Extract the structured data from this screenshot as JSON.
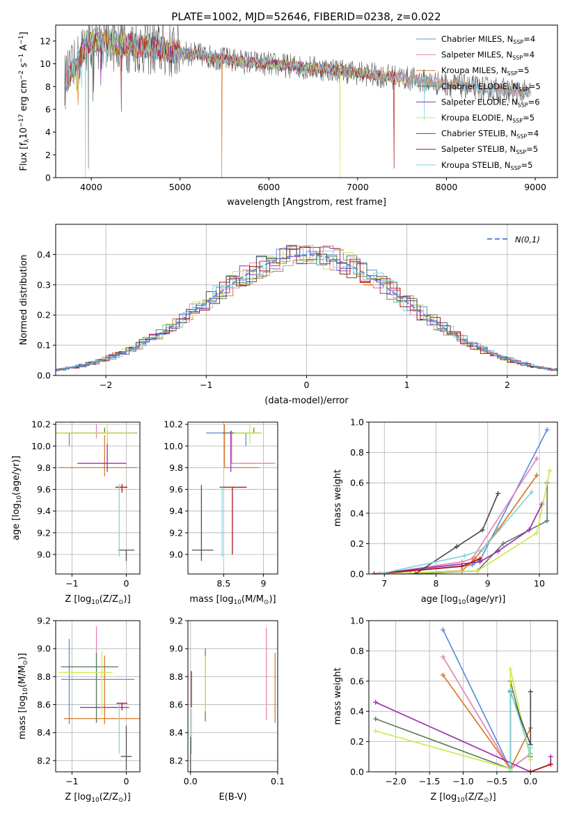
{
  "title": "PLATE=1002, MJD=52646, FIBERID=0238, z=0.022",
  "colors": {
    "Chabrier MILES": "#5b8fdc",
    "Salpeter MILES": "#e583b6",
    "Kroupa MILES": "#d9782b",
    "Chabrier ELODIE": "#5e8060",
    "Salpeter ELODIE": "#9b2fae",
    "Kroupa ELODIE": "#cfe84e",
    "Chabrier STELIB": "#4d4d4d",
    "Salpeter STELIB": "#b31212",
    "Kroupa STELIB": "#7fd6dc"
  },
  "chart_data": [
    {
      "id": "spectrum",
      "type": "line",
      "xlabel": "wavelength [Angstrom, rest frame]",
      "ylabel": "Flux [f_λ10^-17 erg cm^-2 s^-1 A^-1]",
      "xlim": [
        3600,
        9250
      ],
      "ylim": [
        0,
        13.4
      ],
      "xticks": [
        4000,
        5000,
        6000,
        7000,
        8000,
        9000
      ],
      "yticks": [
        0,
        2,
        4,
        6,
        8,
        10,
        12
      ],
      "grid": false,
      "legend": {
        "placement": "top-right"
      },
      "series": [
        {
          "name": "Chabrier MILES",
          "nssp": 4
        },
        {
          "name": "Salpeter MILES",
          "nssp": 4
        },
        {
          "name": "Kroupa MILES",
          "nssp": 5
        },
        {
          "name": "Chabrier ELODIE",
          "nssp": 5
        },
        {
          "name": "Salpeter ELODIE",
          "nssp": 6
        },
        {
          "name": "Kroupa ELODIE",
          "nssp": 5
        },
        {
          "name": "Chabrier STELIB",
          "nssp": 4
        },
        {
          "name": "Salpeter STELIB",
          "nssp": 5
        },
        {
          "name": "Kroupa STELIB",
          "nssp": 5
        }
      ],
      "continuum": {
        "x": [
          3700,
          3800,
          3880,
          3950,
          4050,
          4200,
          4400,
          4600,
          4800,
          5000,
          5200,
          5500,
          5800,
          6100,
          6400,
          6700,
          7000,
          7300,
          7500,
          7800,
          8000,
          8300,
          8600,
          8900,
          9000
        ],
        "y": [
          8.4,
          9.4,
          10.6,
          11.9,
          12.1,
          11.9,
          11.7,
          11.5,
          11.3,
          11.0,
          10.8,
          10.4,
          10.1,
          9.9,
          9.7,
          9.5,
          9.2,
          8.9,
          8.8,
          8.4,
          8.2,
          7.9,
          7.7,
          7.5,
          7.4
        ]
      },
      "dips": [
        {
          "x": 3933,
          "y": 0.0,
          "series": "Kroupa STELIB"
        },
        {
          "x": 3969,
          "y": 0.8,
          "series": "Chabrier STELIB"
        },
        {
          "x": 4340,
          "y": 5.8,
          "series": "Salpeter STELIB"
        },
        {
          "x": 5470,
          "y": 0.0,
          "series": "Kroupa MILES"
        },
        {
          "x": 6800,
          "y": 0.0,
          "series": "Kroupa ELODIE"
        },
        {
          "x": 7410,
          "y": 0.8,
          "series": "Salpeter STELIB"
        },
        {
          "x": 7750,
          "y": 5.0,
          "series": "Kroupa STELIB"
        },
        {
          "x": 8600,
          "y": 6.6,
          "series": "Kroupa STELIB"
        },
        {
          "x": 8800,
          "y": 6.8,
          "series": "Chabrier STELIB"
        }
      ]
    },
    {
      "id": "residuals",
      "type": "histogram",
      "xlabel": "(data-model)/error",
      "ylabel": "Normed distribution",
      "xlim": [
        -2.5,
        2.5
      ],
      "ylim": [
        0,
        0.5
      ],
      "xticks": [
        -2,
        -1,
        0,
        1,
        2
      ],
      "yticks": [
        0.0,
        0.1,
        0.2,
        0.3,
        0.4
      ],
      "grid": true,
      "legend": {
        "placement": "top-right",
        "label": "N(0,1)",
        "color": "#5b8fdc"
      },
      "bin_width": 0.1,
      "reference": "normal(0,1)"
    },
    {
      "id": "age_vs_Z",
      "type": "errorbar",
      "xlabel": "Z [log10(Z/Z⊙)]",
      "ylabel": "age [log10(age/yr)]",
      "xlim": [
        -1.3,
        0.25
      ],
      "ylim": [
        8.82,
        10.22
      ],
      "xticks": [
        -1,
        0
      ],
      "yticks": [
        9.0,
        9.2,
        9.4,
        9.6,
        9.8,
        10.0,
        10.2
      ],
      "grid": true,
      "points": [
        {
          "series": "Chabrier MILES",
          "x": -1.05,
          "xerr": [
            0.1,
            1.2
          ],
          "y": 10.12,
          "yerr": [
            0.12,
            0.0
          ]
        },
        {
          "series": "Salpeter MILES",
          "x": -0.55,
          "xerr": [
            0.5,
            0.75
          ],
          "y": 10.12,
          "yerr": [
            0.05,
            0.08
          ]
        },
        {
          "series": "Kroupa MILES",
          "x": -0.4,
          "xerr": [
            0.85,
            0.6
          ],
          "y": 9.8,
          "yerr": [
            0.08,
            0.3
          ]
        },
        {
          "series": "Chabrier ELODIE",
          "x": -0.4,
          "xerr": [
            0.9,
            0.5
          ],
          "y": 10.12,
          "yerr": [
            0.0,
            0.05
          ]
        },
        {
          "series": "Salpeter ELODIE",
          "x": -0.35,
          "xerr": [
            0.55,
            0.35
          ],
          "y": 9.84,
          "yerr": [
            0.08,
            0.3
          ]
        },
        {
          "series": "Kroupa ELODIE",
          "x": -0.35,
          "xerr": [
            1.0,
            0.5
          ],
          "y": 10.12,
          "yerr": [
            0.1,
            0.08
          ]
        },
        {
          "series": "Chabrier STELIB",
          "x": 0.0,
          "xerr": [
            0.15,
            0.15
          ],
          "y": 9.04,
          "yerr": [
            0.1,
            0.0
          ]
        },
        {
          "series": "Salpeter STELIB",
          "x": -0.08,
          "xerr": [
            0.12,
            0.1
          ],
          "y": 9.62,
          "yerr": [
            0.05,
            0.03
          ]
        },
        {
          "series": "Kroupa STELIB",
          "x": -0.13,
          "xerr": [
            0.0,
            0.0
          ],
          "y": 9.65,
          "yerr": [
            0.67,
            0.0
          ]
        }
      ]
    },
    {
      "id": "age_vs_mass",
      "type": "errorbar",
      "xlabel": "mass [log10(M/M⊙)]",
      "ylabel": "",
      "xlim": [
        8.05,
        9.18
      ],
      "ylim": [
        8.82,
        10.22
      ],
      "xticks": [
        8.5,
        9.0
      ],
      "yticks": [
        9.0,
        9.2,
        9.4,
        9.6,
        9.8,
        10.0,
        10.2
      ],
      "grid": true,
      "points": [
        {
          "series": "Chabrier MILES",
          "x": 8.78,
          "xerr": [
            0.5,
            0.1
          ],
          "y": 10.12,
          "yerr": [
            0.12,
            0.0
          ]
        },
        {
          "series": "Salpeter MILES",
          "x": 8.6,
          "xerr": [
            0.0,
            0.55
          ],
          "y": 9.84,
          "yerr": [
            0.0,
            0.3
          ]
        },
        {
          "series": "Kroupa MILES",
          "x": 8.51,
          "xerr": [
            0.0,
            0.44
          ],
          "y": 9.8,
          "yerr": [
            0.0,
            0.4
          ]
        },
        {
          "series": "Chabrier ELODIE",
          "x": 8.88,
          "xerr": [
            0.4,
            0.1
          ],
          "y": 10.12,
          "yerr": [
            0.0,
            0.05
          ]
        },
        {
          "series": "Salpeter ELODIE",
          "x": 8.59,
          "xerr": [
            0.0,
            0.0
          ],
          "y": 9.84,
          "yerr": [
            0.08,
            0.3
          ]
        },
        {
          "series": "Kroupa ELODIE",
          "x": 8.83,
          "xerr": [
            0.2,
            0.15
          ],
          "y": 10.12,
          "yerr": [
            0.1,
            0.08
          ]
        },
        {
          "series": "Chabrier STELIB",
          "x": 8.22,
          "xerr": [
            0.12,
            0.15
          ],
          "y": 9.04,
          "yerr": [
            0.1,
            0.6
          ]
        },
        {
          "series": "Salpeter STELIB",
          "x": 8.61,
          "xerr": [
            0.16,
            0.18
          ],
          "y": 9.62,
          "yerr": [
            0.62,
            0.0
          ]
        },
        {
          "series": "Kroupa STELIB",
          "x": 8.48,
          "xerr": [
            0.0,
            0.0
          ],
          "y": 9.63,
          "yerr": [
            0.65,
            0.0
          ]
        }
      ]
    },
    {
      "id": "weight_vs_age",
      "type": "line",
      "xlabel": "age [log10(age/yr)]",
      "ylabel": "mass weight",
      "xlim": [
        6.7,
        10.35
      ],
      "ylim": [
        0,
        1.0
      ],
      "xticks": [
        7,
        8,
        9,
        10
      ],
      "yticks": [
        0.0,
        0.2,
        0.4,
        0.6,
        0.8,
        1.0
      ],
      "grid": true,
      "series": [
        {
          "name": "Chabrier MILES",
          "x": [
            6.9,
            8.7,
            8.85,
            10.15
          ],
          "y": [
            0.0,
            0.06,
            0.09,
            0.95
          ]
        },
        {
          "name": "Salpeter MILES",
          "x": [
            6.9,
            8.5,
            8.7,
            9.95
          ],
          "y": [
            0.0,
            0.08,
            0.1,
            0.76
          ]
        },
        {
          "name": "Kroupa MILES",
          "x": [
            7.0,
            8.5,
            8.75,
            9.2,
            9.95
          ],
          "y": [
            0.0,
            0.02,
            0.1,
            0.29,
            0.65
          ]
        },
        {
          "name": "Chabrier ELODIE",
          "x": [
            7.5,
            8.8,
            9.3,
            10.15,
            10.15
          ],
          "y": [
            0.0,
            0.02,
            0.2,
            0.35,
            0.6
          ]
        },
        {
          "name": "Salpeter ELODIE",
          "x": [
            6.8,
            8.85,
            9.2,
            9.8,
            10.05
          ],
          "y": [
            0.0,
            0.08,
            0.15,
            0.29,
            0.46
          ]
        },
        {
          "name": "Kroupa ELODIE",
          "x": [
            6.8,
            8.8,
            9.95,
            10.2
          ],
          "y": [
            0.0,
            0.02,
            0.27,
            0.68
          ]
        },
        {
          "name": "Chabrier STELIB",
          "x": [
            7.6,
            8.4,
            8.9,
            9.2
          ],
          "y": [
            0.0,
            0.18,
            0.29,
            0.53
          ]
        },
        {
          "name": "Salpeter STELIB",
          "x": [
            6.8,
            8.5,
            8.85
          ],
          "y": [
            0.0,
            0.05,
            0.1
          ]
        },
        {
          "name": "Kroupa STELIB",
          "x": [
            6.9,
            8.55,
            8.9,
            9.85
          ],
          "y": [
            0.0,
            0.12,
            0.16,
            0.54
          ]
        }
      ]
    },
    {
      "id": "mass_vs_Z",
      "type": "errorbar",
      "xlabel": "Z [log10(Z/Z⊙)]",
      "ylabel": "mass [log10(M/M⊙)]",
      "xlim": [
        -1.3,
        0.25
      ],
      "ylim": [
        8.12,
        9.2
      ],
      "xticks": [
        -1,
        0
      ],
      "yticks": [
        8.2,
        8.4,
        8.6,
        8.8,
        9.0,
        9.2
      ],
      "grid": true,
      "points": [
        {
          "series": "Chabrier MILES",
          "x": -1.05,
          "xerr": [
            0.15,
            1.2
          ],
          "y": 8.78,
          "yerr": [
            0.32,
            0.29
          ]
        },
        {
          "series": "Salpeter MILES",
          "x": -0.55,
          "xerr": [
            0.0,
            0.0
          ],
          "y": 8.8,
          "yerr": [
            0.32,
            0.36
          ]
        },
        {
          "series": "Kroupa MILES",
          "x": -0.4,
          "xerr": [
            0.75,
            0.65
          ],
          "y": 8.5,
          "yerr": [
            0.04,
            0.45
          ]
        },
        {
          "series": "Chabrier ELODIE",
          "x": -0.55,
          "xerr": [
            0.65,
            0.4
          ],
          "y": 8.87,
          "yerr": [
            0.4,
            0.1
          ]
        },
        {
          "series": "Salpeter ELODIE",
          "x": -0.3,
          "xerr": [
            0.55,
            0.35
          ],
          "y": 8.58,
          "yerr": [
            0.0,
            0.0
          ]
        },
        {
          "series": "Kroupa ELODIE",
          "x": -0.45,
          "xerr": [
            0.8,
            0.2
          ],
          "y": 8.83,
          "yerr": [
            0.3,
            0.15
          ]
        },
        {
          "series": "Chabrier STELIB",
          "x": 0.0,
          "xerr": [
            0.1,
            0.1
          ],
          "y": 8.23,
          "yerr": [
            0.1,
            0.22
          ]
        },
        {
          "series": "Salpeter STELIB",
          "x": -0.08,
          "xerr": [
            0.1,
            0.1
          ],
          "y": 8.61,
          "yerr": [
            0.05,
            0.0
          ]
        },
        {
          "series": "Kroupa STELIB",
          "x": -0.13,
          "xerr": [
            0.0,
            0.0
          ],
          "y": 8.5,
          "yerr": [
            0.25,
            0.1
          ]
        }
      ]
    },
    {
      "id": "mass_vs_ebv",
      "type": "errorbar",
      "xlabel": "E(B-V)",
      "ylabel": "",
      "xlim": [
        -0.003,
        0.1
      ],
      "ylim": [
        8.12,
        9.2
      ],
      "xticks": [
        0.0,
        0.1
      ],
      "yticks": [
        8.2,
        8.4,
        8.6,
        8.8,
        9.0,
        9.2
      ],
      "grid": true,
      "points": [
        {
          "series": "Salpeter MILES",
          "x": 0.087,
          "xerr": [
            0.0,
            0.0
          ],
          "y": 8.82,
          "yerr": [
            0.33,
            0.33
          ]
        },
        {
          "series": "Kroupa MILES",
          "x": 0.097,
          "xerr": [
            0.0,
            0.0
          ],
          "y": 8.72,
          "yerr": [
            0.25,
            0.25
          ]
        },
        {
          "series": "Chabrier ELODIE",
          "x": 0.017,
          "xerr": [
            0.0,
            0.0
          ],
          "y": 8.78,
          "yerr": [
            0.3,
            0.22
          ]
        },
        {
          "series": "Kroupa ELODIE",
          "x": 0.017,
          "xerr": [
            0.0,
            0.0
          ],
          "y": 8.75,
          "yerr": [
            0.2,
            0.2
          ]
        },
        {
          "series": "Salpeter STELIB",
          "x": 0.001,
          "xerr": [
            0.0,
            0.0
          ],
          "y": 8.72,
          "yerr": [
            0.14,
            0.12
          ]
        },
        {
          "series": "Chabrier STELIB",
          "x": 0.0,
          "xerr": [
            0.0,
            0.0
          ],
          "y": 8.25,
          "yerr": [
            0.15,
            0.12
          ]
        },
        {
          "series": "Kroupa STELIB",
          "x": 0.001,
          "xerr": [
            0.0,
            0.0
          ],
          "y": 8.45,
          "yerr": [
            0.2,
            0.12
          ]
        }
      ]
    },
    {
      "id": "weight_vs_Z",
      "type": "line",
      "xlabel": "Z [log10(Z/Z⊙)]",
      "ylabel": "mass weight",
      "xlim": [
        -2.4,
        0.4
      ],
      "ylim": [
        0,
        1.0
      ],
      "xticks": [
        -2.0,
        -1.5,
        -1.0,
        -0.5,
        0.0
      ],
      "yticks": [
        0.0,
        0.2,
        0.4,
        0.6,
        0.8,
        1.0
      ],
      "grid": true,
      "series": [
        {
          "name": "Chabrier MILES",
          "x": [
            -1.3,
            -0.3,
            0.0
          ],
          "y": [
            0.94,
            0.02,
            0.12
          ]
        },
        {
          "name": "Salpeter MILES",
          "x": [
            -1.3,
            -0.3,
            0.0
          ],
          "y": [
            0.76,
            0.02,
            0.12
          ]
        },
        {
          "name": "Kroupa MILES",
          "x": [
            -1.3,
            -0.3,
            0.0
          ],
          "y": [
            0.64,
            0.02,
            0.29
          ]
        },
        {
          "name": "Chabrier ELODIE",
          "x": [
            -2.3,
            -0.3,
            -0.3,
            0.0
          ],
          "y": [
            0.35,
            0.02,
            0.6,
            0.1
          ]
        },
        {
          "name": "Salpeter ELODIE",
          "x": [
            -2.3,
            0.0,
            0.3,
            0.3
          ],
          "y": [
            0.46,
            0.0,
            0.05,
            0.1
          ]
        },
        {
          "name": "Kroupa ELODIE",
          "x": [
            -2.3,
            -0.3,
            -0.3,
            0.0
          ],
          "y": [
            0.27,
            0.02,
            0.68,
            0.08
          ]
        },
        {
          "name": "Chabrier STELIB",
          "x": [
            -0.3,
            -0.3,
            0.0,
            0.0
          ],
          "y": [
            0.0,
            0.53,
            0.18,
            0.53
          ]
        },
        {
          "name": "Salpeter STELIB",
          "x": [
            0.0,
            0.3
          ],
          "y": [
            0.0,
            0.05
          ]
        },
        {
          "name": "Kroupa STELIB",
          "x": [
            -0.3,
            -0.3,
            0.0,
            0.0
          ],
          "y": [
            0.0,
            0.54,
            0.12,
            0.16
          ]
        }
      ]
    }
  ]
}
